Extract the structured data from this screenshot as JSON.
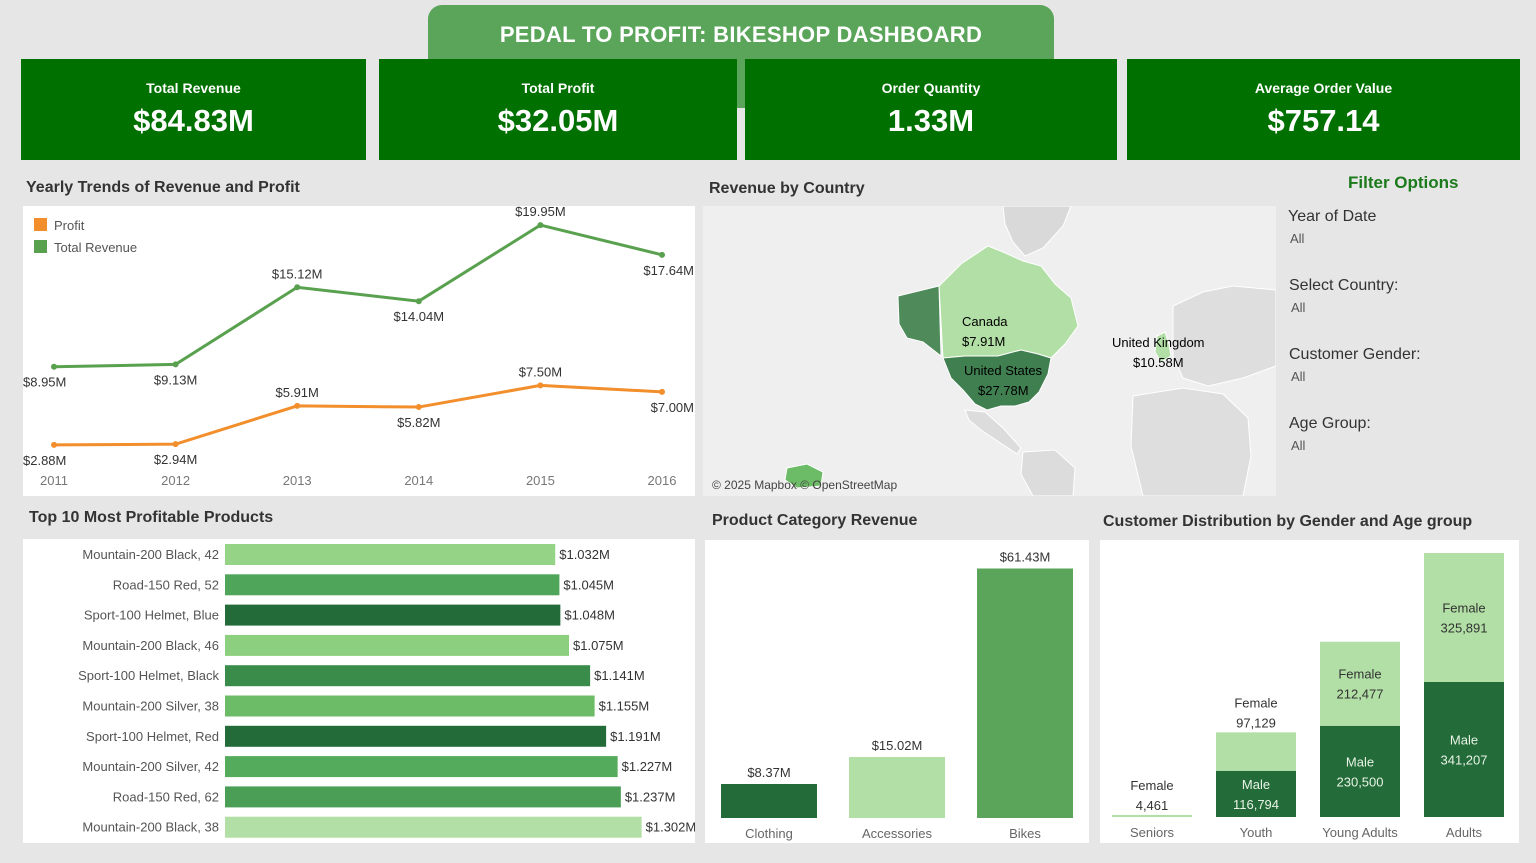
{
  "header": {
    "title": "PEDAL TO PROFIT: BIKESHOP DASHBOARD"
  },
  "kpis": [
    {
      "label": "Total Revenue",
      "value": "$84.83M"
    },
    {
      "label": "Total Profit",
      "value": "$32.05M"
    },
    {
      "label": "Order Quantity",
      "value": "1.33M"
    },
    {
      "label": "Average Order Value",
      "value": "$757.14"
    }
  ],
  "sections": {
    "trend_title": "Yearly Trends of Revenue and Profit",
    "map_title": "Revenue by Country",
    "products_title": "Top 10 Most Profitable Products",
    "category_title": "Product Category Revenue",
    "customer_title": "Customer Distribution by Gender and Age group"
  },
  "map": {
    "attribution": "© 2025 Mapbox © OpenStreetMap",
    "countries": [
      {
        "name": "Canada",
        "value": "$7.91M"
      },
      {
        "name": "United States",
        "value": "$27.78M"
      },
      {
        "name": "United Kingdom",
        "value": "$10.58M"
      }
    ]
  },
  "filters": {
    "title": "Filter Options",
    "items": [
      {
        "label": "Year of Date",
        "value": "All"
      },
      {
        "label": "Select Country:",
        "value": "All"
      },
      {
        "label": "Customer Gender:",
        "value": "All"
      },
      {
        "label": "Age Group:",
        "value": "All"
      }
    ]
  },
  "colors": {
    "kpi_bg": "#007000",
    "banner": "#5aa55a",
    "profit": "#f28e2b",
    "revenue": "#59a14f",
    "dark_green": "#246b3a",
    "light_green": "#b2dfa5"
  },
  "chart_data": [
    {
      "type": "line",
      "title": "Yearly Trends of Revenue and Profit",
      "x": [
        "2011",
        "2012",
        "2013",
        "2014",
        "2015",
        "2016"
      ],
      "legend_position": "top-left",
      "series": [
        {
          "name": "Profit",
          "values": [
            2.88,
            2.94,
            5.91,
            5.82,
            7.5,
            7.0
          ],
          "labels": [
            "$2.88M",
            "$2.94M",
            "$5.91M",
            "$5.82M",
            "$7.50M",
            "$7.00M"
          ],
          "color": "#f28e2b"
        },
        {
          "name": "Total Revenue",
          "values": [
            8.95,
            9.13,
            15.12,
            14.04,
            19.95,
            17.64
          ],
          "labels": [
            "$8.95M",
            "$9.13M",
            "$15.12M",
            "$14.04M",
            "$19.95M",
            "$17.64M"
          ],
          "color": "#59a14f"
        }
      ],
      "ylim": [
        0,
        20.5
      ]
    },
    {
      "type": "bar",
      "orientation": "horizontal",
      "title": "Top 10 Most Profitable Products",
      "categories": [
        "Mountain-200 Black, 42",
        "Road-150 Red, 52",
        "Sport-100 Helmet, Blue",
        "Mountain-200 Black, 46",
        "Sport-100 Helmet, Black",
        "Mountain-200 Silver, 38",
        "Sport-100 Helmet, Red",
        "Mountain-200 Silver, 42",
        "Road-150 Red, 62",
        "Mountain-200 Black, 38"
      ],
      "values": [
        1.032,
        1.045,
        1.048,
        1.075,
        1.141,
        1.155,
        1.191,
        1.227,
        1.237,
        1.302
      ],
      "labels": [
        "$1.032M",
        "$1.045M",
        "$1.048M",
        "$1.075M",
        "$1.141M",
        "$1.155M",
        "$1.191M",
        "$1.227M",
        "$1.237M",
        "$1.302M"
      ],
      "colors": [
        "#95d487",
        "#4fa65a",
        "#246b3a",
        "#8ccf7e",
        "#3a8c4a",
        "#6cbb66",
        "#246b3a",
        "#55ab5c",
        "#4a9e56",
        "#b2dfa5"
      ],
      "xlim": [
        0,
        1.4
      ]
    },
    {
      "type": "bar",
      "title": "Product Category Revenue",
      "categories": [
        "Clothing",
        "Accessories",
        "Bikes"
      ],
      "values": [
        8.37,
        15.02,
        61.43
      ],
      "labels": [
        "$8.37M",
        "$15.02M",
        "$61.43M"
      ],
      "colors": [
        "#246b3a",
        "#b2dfa5",
        "#5aa55a"
      ],
      "ylim": [
        0,
        65
      ]
    },
    {
      "type": "bar",
      "stacked": true,
      "title": "Customer Distribution by Gender and Age group",
      "categories": [
        "Seniors",
        "Youth",
        "Young Adults",
        "Adults"
      ],
      "series": [
        {
          "name": "Male",
          "values": [
            0,
            116794,
            230500,
            341207
          ],
          "labels": [
            "",
            "116,794",
            "230,500",
            "341,207"
          ],
          "color": "#246b3a"
        },
        {
          "name": "Female",
          "values": [
            4461,
            97129,
            212477,
            325891
          ],
          "labels": [
            "4,461",
            "97,129",
            "212,477",
            "325,891"
          ],
          "color": "#b2dfa5"
        }
      ],
      "ylim": [
        0,
        667098
      ]
    }
  ]
}
